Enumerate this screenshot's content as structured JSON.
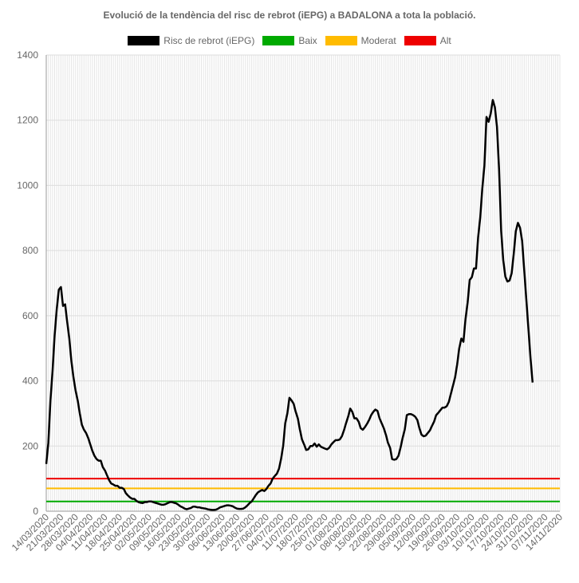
{
  "chart_data": {
    "type": "line",
    "title": "Evolució de la tendència del risc de rebrot (iEPG) a BADALONA a tota la població.",
    "ylim": [
      0,
      1400
    ],
    "yticks": [
      0,
      200,
      400,
      600,
      800,
      1000,
      1200,
      1400
    ],
    "grid": true,
    "legend_position": "top",
    "x_tick_labels": [
      "14/03/2020",
      "21/03/2020",
      "28/03/2020",
      "04/04/2020",
      "11/04/2020",
      "18/04/2020",
      "25/04/2020",
      "02/05/2020",
      "09/05/2020",
      "16/05/2020",
      "23/05/2020",
      "30/05/2020",
      "06/06/2020",
      "13/06/2020",
      "20/06/2020",
      "27/06/2020",
      "04/07/2020",
      "11/07/2020",
      "18/07/2020",
      "25/07/2020",
      "01/08/2020",
      "08/08/2020",
      "15/08/2020",
      "22/08/2020",
      "29/08/2020",
      "05/09/2020",
      "12/09/2020",
      "19/09/2020",
      "26/09/2020",
      "03/10/2020",
      "10/10/2020",
      "17/10/2020",
      "24/10/2020",
      "31/10/2020",
      "07/11/2020",
      "14/11/2020"
    ],
    "x_first": "14/03/2020",
    "x_last": "14/11/2020",
    "series": [
      {
        "name": "Risc de rebrot (iEPG)",
        "color": "#000000",
        "points": [
          [
            "14/03/2020",
            145
          ],
          [
            "15/03/2020",
            210
          ],
          [
            "16/03/2020",
            340
          ],
          [
            "17/03/2020",
            430
          ],
          [
            "18/03/2020",
            540
          ],
          [
            "19/03/2020",
            620
          ],
          [
            "20/03/2020",
            680
          ],
          [
            "21/03/2020",
            688
          ],
          [
            "22/03/2020",
            630
          ],
          [
            "23/03/2020",
            635
          ],
          [
            "24/03/2020",
            580
          ],
          [
            "25/03/2020",
            530
          ],
          [
            "26/03/2020",
            460
          ],
          [
            "27/03/2020",
            410
          ],
          [
            "28/03/2020",
            370
          ],
          [
            "29/03/2020",
            340
          ],
          [
            "30/03/2020",
            300
          ],
          [
            "31/03/2020",
            265
          ],
          [
            "01/04/2020",
            250
          ],
          [
            "02/04/2020",
            240
          ],
          [
            "03/04/2020",
            225
          ],
          [
            "04/04/2020",
            205
          ],
          [
            "05/04/2020",
            185
          ],
          [
            "06/04/2020",
            170
          ],
          [
            "07/04/2020",
            160
          ],
          [
            "08/04/2020",
            155
          ],
          [
            "09/04/2020",
            155
          ],
          [
            "10/04/2020",
            135
          ],
          [
            "11/04/2020",
            125
          ],
          [
            "12/04/2020",
            110
          ],
          [
            "13/04/2020",
            95
          ],
          [
            "14/04/2020",
            85
          ],
          [
            "15/04/2020",
            82
          ],
          [
            "16/04/2020",
            78
          ],
          [
            "17/04/2020",
            78
          ],
          [
            "18/04/2020",
            72
          ],
          [
            "19/04/2020",
            72
          ],
          [
            "20/04/2020",
            68
          ],
          [
            "21/04/2020",
            55
          ],
          [
            "22/04/2020",
            48
          ],
          [
            "23/04/2020",
            42
          ],
          [
            "24/04/2020",
            38
          ],
          [
            "25/04/2020",
            38
          ],
          [
            "26/04/2020",
            32
          ],
          [
            "27/04/2020",
            28
          ],
          [
            "28/04/2020",
            26
          ],
          [
            "29/04/2020",
            25
          ],
          [
            "30/04/2020",
            28
          ],
          [
            "01/05/2020",
            28
          ],
          [
            "02/05/2020",
            30
          ],
          [
            "03/05/2020",
            30
          ],
          [
            "04/05/2020",
            28
          ],
          [
            "05/05/2020",
            26
          ],
          [
            "06/05/2020",
            24
          ],
          [
            "07/05/2020",
            22
          ],
          [
            "08/05/2020",
            20
          ],
          [
            "09/05/2020",
            20
          ],
          [
            "10/05/2020",
            22
          ],
          [
            "11/05/2020",
            25
          ],
          [
            "12/05/2020",
            28
          ],
          [
            "13/05/2020",
            28
          ],
          [
            "14/05/2020",
            26
          ],
          [
            "15/05/2020",
            24
          ],
          [
            "16/05/2020",
            20
          ],
          [
            "17/05/2020",
            15
          ],
          [
            "18/05/2020",
            12
          ],
          [
            "19/05/2020",
            8
          ],
          [
            "20/05/2020",
            6
          ],
          [
            "21/05/2020",
            8
          ],
          [
            "22/05/2020",
            10
          ],
          [
            "23/05/2020",
            14
          ],
          [
            "24/05/2020",
            14
          ],
          [
            "25/05/2020",
            12
          ],
          [
            "26/05/2020",
            12
          ],
          [
            "27/05/2020",
            10
          ],
          [
            "28/05/2020",
            9
          ],
          [
            "29/05/2020",
            8
          ],
          [
            "30/05/2020",
            6
          ],
          [
            "31/05/2020",
            5
          ],
          [
            "01/06/2020",
            4
          ],
          [
            "02/06/2020",
            4
          ],
          [
            "03/06/2020",
            5
          ],
          [
            "04/06/2020",
            8
          ],
          [
            "05/06/2020",
            12
          ],
          [
            "06/06/2020",
            14
          ],
          [
            "07/06/2020",
            16
          ],
          [
            "08/06/2020",
            18
          ],
          [
            "09/06/2020",
            18
          ],
          [
            "10/06/2020",
            17
          ],
          [
            "11/06/2020",
            15
          ],
          [
            "12/06/2020",
            11
          ],
          [
            "13/06/2020",
            8
          ],
          [
            "14/06/2020",
            7
          ],
          [
            "15/06/2020",
            7
          ],
          [
            "16/06/2020",
            8
          ],
          [
            "17/06/2020",
            12
          ],
          [
            "18/06/2020",
            18
          ],
          [
            "19/06/2020",
            25
          ],
          [
            "20/06/2020",
            30
          ],
          [
            "21/06/2020",
            40
          ],
          [
            "22/06/2020",
            50
          ],
          [
            "23/06/2020",
            58
          ],
          [
            "24/06/2020",
            62
          ],
          [
            "25/06/2020",
            65
          ],
          [
            "26/06/2020",
            62
          ],
          [
            "27/06/2020",
            68
          ],
          [
            "28/06/2020",
            78
          ],
          [
            "29/06/2020",
            85
          ],
          [
            "30/06/2020",
            100
          ],
          [
            "01/07/2020",
            108
          ],
          [
            "02/07/2020",
            115
          ],
          [
            "03/07/2020",
            130
          ],
          [
            "04/07/2020",
            160
          ],
          [
            "05/07/2020",
            200
          ],
          [
            "06/07/2020",
            270
          ],
          [
            "07/07/2020",
            300
          ],
          [
            "08/07/2020",
            348
          ],
          [
            "09/07/2020",
            340
          ],
          [
            "10/07/2020",
            330
          ],
          [
            "11/07/2020",
            305
          ],
          [
            "12/07/2020",
            285
          ],
          [
            "13/07/2020",
            250
          ],
          [
            "14/07/2020",
            220
          ],
          [
            "15/07/2020",
            205
          ],
          [
            "16/07/2020",
            188
          ],
          [
            "17/07/2020",
            190
          ],
          [
            "18/07/2020",
            200
          ],
          [
            "19/07/2020",
            200
          ],
          [
            "20/07/2020",
            208
          ],
          [
            "21/07/2020",
            198
          ],
          [
            "22/07/2020",
            205
          ],
          [
            "23/07/2020",
            198
          ],
          [
            "24/07/2020",
            195
          ],
          [
            "25/07/2020",
            192
          ],
          [
            "26/07/2020",
            190
          ],
          [
            "27/07/2020",
            195
          ],
          [
            "28/07/2020",
            205
          ],
          [
            "29/07/2020",
            212
          ],
          [
            "30/07/2020",
            218
          ],
          [
            "31/07/2020",
            218
          ],
          [
            "01/08/2020",
            220
          ],
          [
            "02/08/2020",
            230
          ],
          [
            "03/08/2020",
            248
          ],
          [
            "04/08/2020",
            270
          ],
          [
            "05/08/2020",
            290
          ],
          [
            "06/08/2020",
            315
          ],
          [
            "07/08/2020",
            305
          ],
          [
            "08/08/2020",
            285
          ],
          [
            "09/08/2020",
            285
          ],
          [
            "10/08/2020",
            275
          ],
          [
            "11/08/2020",
            255
          ],
          [
            "12/08/2020",
            250
          ],
          [
            "13/08/2020",
            258
          ],
          [
            "14/08/2020",
            268
          ],
          [
            "15/08/2020",
            280
          ],
          [
            "16/08/2020",
            295
          ],
          [
            "17/08/2020",
            305
          ],
          [
            "18/08/2020",
            312
          ],
          [
            "19/08/2020",
            308
          ],
          [
            "20/08/2020",
            285
          ],
          [
            "21/08/2020",
            270
          ],
          [
            "22/08/2020",
            255
          ],
          [
            "23/08/2020",
            235
          ],
          [
            "24/08/2020",
            210
          ],
          [
            "25/08/2020",
            195
          ],
          [
            "26/08/2020",
            160
          ],
          [
            "27/08/2020",
            158
          ],
          [
            "28/08/2020",
            160
          ],
          [
            "29/08/2020",
            170
          ],
          [
            "30/08/2020",
            195
          ],
          [
            "31/08/2020",
            225
          ],
          [
            "01/09/2020",
            250
          ],
          [
            "02/09/2020",
            295
          ],
          [
            "03/09/2020",
            298
          ],
          [
            "04/09/2020",
            298
          ],
          [
            "05/09/2020",
            295
          ],
          [
            "06/09/2020",
            290
          ],
          [
            "07/09/2020",
            280
          ],
          [
            "08/09/2020",
            255
          ],
          [
            "09/09/2020",
            235
          ],
          [
            "10/09/2020",
            230
          ],
          [
            "11/09/2020",
            232
          ],
          [
            "12/09/2020",
            240
          ],
          [
            "13/09/2020",
            248
          ],
          [
            "14/09/2020",
            262
          ],
          [
            "15/09/2020",
            275
          ],
          [
            "16/09/2020",
            295
          ],
          [
            "17/09/2020",
            302
          ],
          [
            "18/09/2020",
            310
          ],
          [
            "19/09/2020",
            318
          ],
          [
            "20/09/2020",
            318
          ],
          [
            "21/09/2020",
            322
          ],
          [
            "22/09/2020",
            335
          ],
          [
            "23/09/2020",
            360
          ],
          [
            "24/09/2020",
            385
          ],
          [
            "25/09/2020",
            410
          ],
          [
            "26/09/2020",
            450
          ],
          [
            "27/09/2020",
            500
          ],
          [
            "28/09/2020",
            530
          ],
          [
            "29/09/2020",
            520
          ],
          [
            "30/09/2020",
            590
          ],
          [
            "01/10/2020",
            640
          ],
          [
            "02/10/2020",
            710
          ],
          [
            "03/10/2020",
            718
          ],
          [
            "04/10/2020",
            745
          ],
          [
            "05/10/2020",
            745
          ],
          [
            "06/10/2020",
            840
          ],
          [
            "07/10/2020",
            900
          ],
          [
            "08/10/2020",
            990
          ],
          [
            "09/10/2020",
            1060
          ],
          [
            "10/10/2020",
            1210
          ],
          [
            "11/10/2020",
            1195
          ],
          [
            "12/10/2020",
            1220
          ],
          [
            "13/10/2020",
            1262
          ],
          [
            "14/10/2020",
            1240
          ],
          [
            "15/10/2020",
            1180
          ],
          [
            "16/10/2020",
            1050
          ],
          [
            "17/10/2020",
            860
          ],
          [
            "18/10/2020",
            770
          ],
          [
            "19/10/2020",
            720
          ],
          [
            "20/10/2020",
            705
          ],
          [
            "21/10/2020",
            708
          ],
          [
            "22/10/2020",
            730
          ],
          [
            "23/10/2020",
            790
          ],
          [
            "24/10/2020",
            860
          ],
          [
            "25/10/2020",
            885
          ],
          [
            "26/10/2020",
            870
          ],
          [
            "27/10/2020",
            830
          ],
          [
            "28/10/2020",
            740
          ],
          [
            "29/10/2020",
            650
          ],
          [
            "30/10/2020",
            560
          ],
          [
            "31/10/2020",
            470
          ],
          [
            "01/11/2020",
            395
          ]
        ]
      },
      {
        "name": "Baix",
        "color": "#00aa00",
        "value": 30
      },
      {
        "name": "Moderat",
        "color": "#ffbb00",
        "value": 70
      },
      {
        "name": "Alt",
        "color": "#ee0000",
        "value": 100
      }
    ]
  }
}
